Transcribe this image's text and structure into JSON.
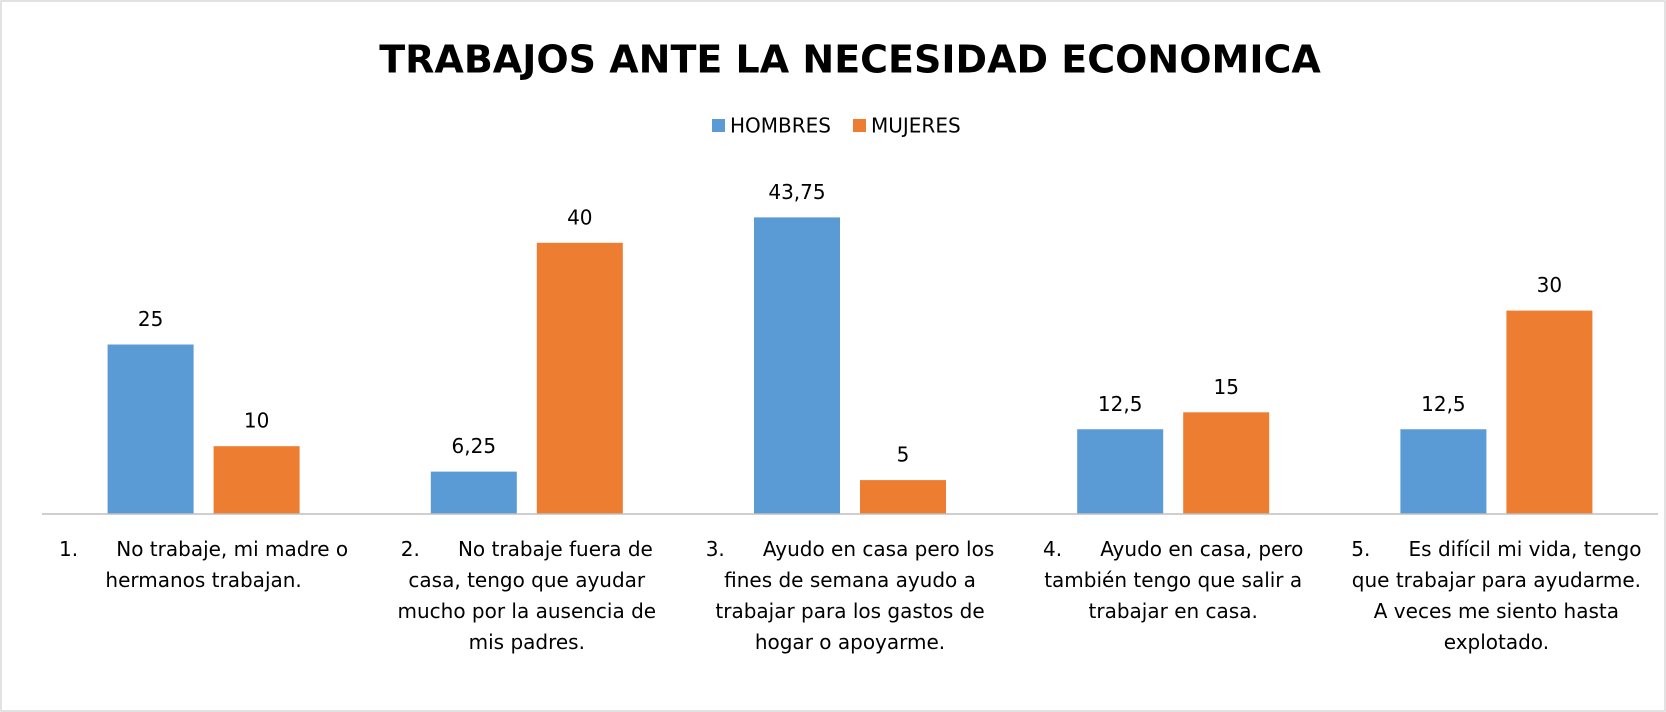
{
  "chart_data": {
    "type": "bar",
    "title": "TRABAJOS ANTE LA NECESIDAD ECONOMICA",
    "categories": [
      "1.      No trabaje, mi madre o hermanos trabajan.",
      "2.      No trabaje fuera de casa, tengo que ayudar mucho por la ausencia de mis padres.",
      "3.      Ayudo en casa pero los fines de semana ayudo a trabajar para los gastos de hogar o apoyarme.",
      "4.      Ayudo en casa, pero también tengo que salir a trabajar en casa.",
      "5.      Es difícil mi vida, tengo que trabajar para ayudarme. A veces me siento hasta explotado."
    ],
    "series": [
      {
        "name": "HOMBRES",
        "color": "#5b9bd5",
        "values": [
          25,
          6.25,
          43.75,
          12.5,
          12.5
        ],
        "value_labels": [
          "25",
          "6,25",
          "43,75",
          "12,5",
          "12,5"
        ]
      },
      {
        "name": "MUJERES",
        "color": "#ed7d31",
        "values": [
          10,
          40,
          5,
          15,
          30
        ]
      }
    ],
    "ylim": [
      0,
      50
    ],
    "legend": "top"
  }
}
